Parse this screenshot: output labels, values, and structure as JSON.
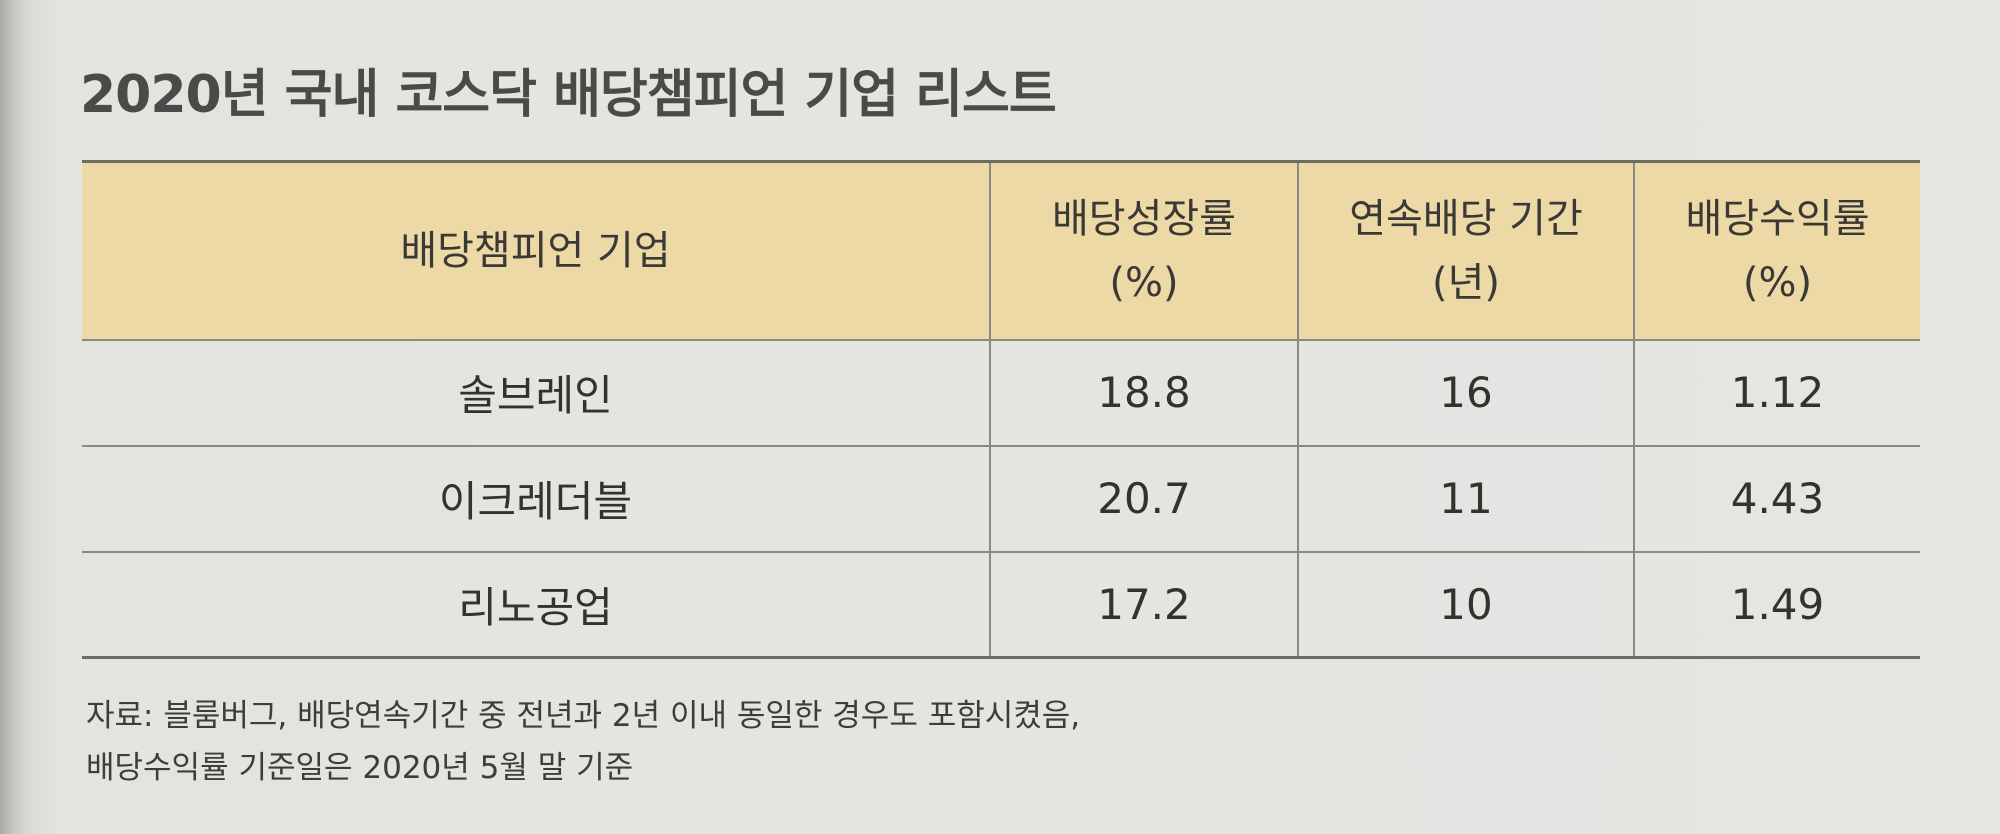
{
  "title": "2020년 국내 코스닥 배당챔피언 기업 리스트",
  "table": {
    "headers": [
      {
        "line1": "배당챔피언 기업",
        "line2": ""
      },
      {
        "line1": "배당성장률",
        "line2": "(%)"
      },
      {
        "line1": "연속배당 기간",
        "line2": "(년)"
      },
      {
        "line1": "배당수익률",
        "line2": "(%)"
      }
    ],
    "rows": [
      {
        "company": "솔브레인",
        "growth": "18.8",
        "years": "16",
        "yield": "1.12"
      },
      {
        "company": "이크레더블",
        "growth": "20.7",
        "years": "11",
        "yield": "4.43"
      },
      {
        "company": "리노공업",
        "growth": "17.2",
        "years": "10",
        "yield": "1.49"
      }
    ]
  },
  "note": {
    "line1": "자료: 블룸버그, 배당연속기간 중 전년과 2년 이내 동일한 경우도 포함시켰음,",
    "line2": "배당수익률 기준일은 2020년 5월 말 기준"
  }
}
